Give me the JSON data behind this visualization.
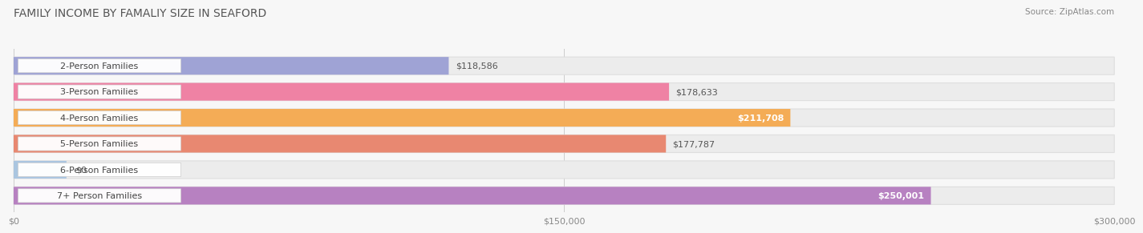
{
  "title": "FAMILY INCOME BY FAMALIY SIZE IN SEAFORD",
  "source": "Source: ZipAtlas.com",
  "categories": [
    "2-Person Families",
    "3-Person Families",
    "4-Person Families",
    "5-Person Families",
    "6-Person Families",
    "7+ Person Families"
  ],
  "values": [
    118586,
    178633,
    211708,
    177787,
    0,
    250001
  ],
  "bar_colors": [
    "#9b9fd4",
    "#f07ca0",
    "#f5a94e",
    "#e8836a",
    "#a8c4e0",
    "#b57bbf"
  ],
  "value_inside": [
    false,
    false,
    true,
    false,
    false,
    true
  ],
  "xlim": [
    0,
    300000
  ],
  "xtick_labels": [
    "$0",
    "$150,000",
    "$300,000"
  ],
  "xtick_values": [
    0,
    150000,
    300000
  ],
  "background_color": "#f7f7f7",
  "bar_bg_color": "#ececec",
  "bar_bg_edge": "#dedede",
  "title_fontsize": 10,
  "label_fontsize": 8,
  "value_fontsize": 8,
  "tick_fontsize": 8,
  "bar_height": 0.68,
  "bar_gap": 1.0
}
